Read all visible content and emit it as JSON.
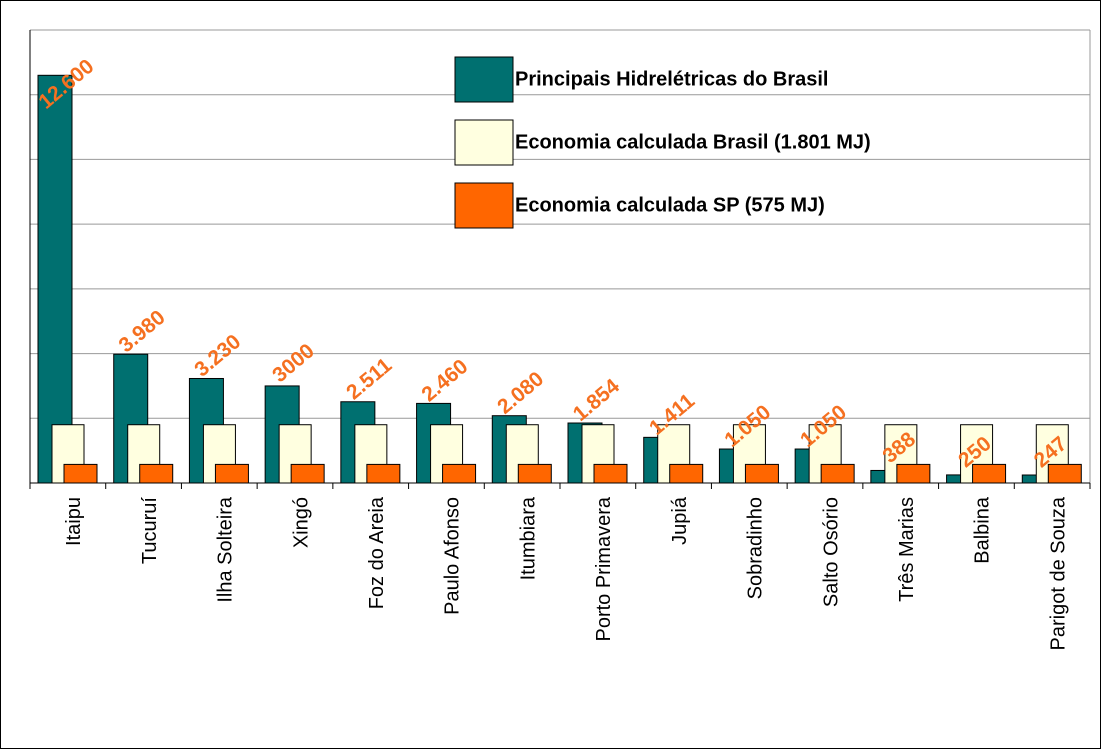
{
  "chart_data": {
    "type": "bar",
    "categories": [
      "Itaipu",
      "Tucuruí",
      "Ilha Solteira",
      "Xingó",
      "Foz do Areia",
      "Paulo Afonso",
      "Itumbiara",
      "Porto Primavera",
      "Jupiá",
      "Sobradinho",
      "Salto Osório",
      "Três Marias",
      "Balbina",
      "Parigot de Souza"
    ],
    "series": [
      {
        "name": "Principais Hidrelétricas do Brasil",
        "color": "#007070",
        "values": [
          12600,
          3980,
          3230,
          3000,
          2511,
          2460,
          2080,
          1854,
          1411,
          1050,
          1050,
          388,
          250,
          247
        ],
        "value_labels": [
          "12.600",
          "3.980",
          "3.230",
          "3000",
          "2.511",
          "2.460",
          "2.080",
          "1.854",
          "1.411",
          "1.050",
          "1.050",
          "388",
          "250",
          "247"
        ]
      },
      {
        "name": "Economia calculada Brasil (1.801 MJ)",
        "color": "#ffffe0",
        "values": [
          1801,
          1801,
          1801,
          1801,
          1801,
          1801,
          1801,
          1801,
          1801,
          1801,
          1801,
          1801,
          1801,
          1801
        ]
      },
      {
        "name": "Economia calculada SP (575 MJ)",
        "color": "#ff6600",
        "values": [
          575,
          575,
          575,
          575,
          575,
          575,
          575,
          575,
          575,
          575,
          575,
          575,
          575,
          575
        ]
      }
    ],
    "ylim": [
      0,
      14000
    ],
    "yticks": [
      0,
      2000,
      4000,
      6000,
      8000,
      10000,
      12000,
      14000
    ],
    "grid": true,
    "value_label_color": "#f57020"
  }
}
